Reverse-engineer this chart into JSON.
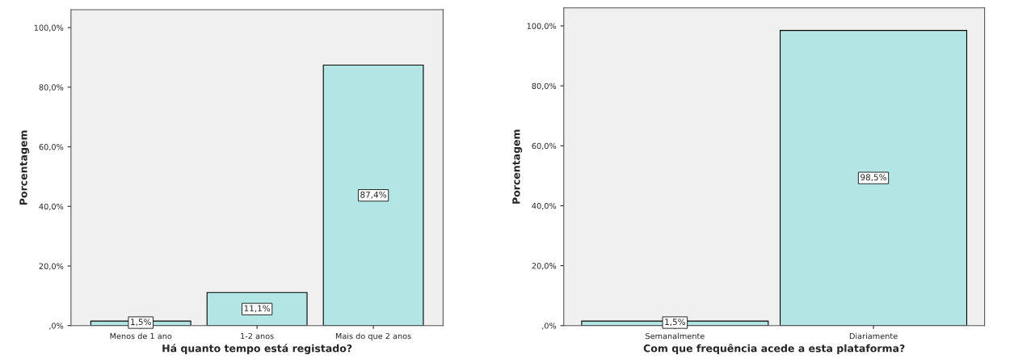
{
  "chart_data": [
    {
      "type": "bar",
      "xlabel": "Há quanto tempo está registado?",
      "ylabel": "Porcentagem",
      "categories": [
        "Menos de 1 ano",
        "1-2 anos",
        "Mais do que 2 anos"
      ],
      "values": [
        1.5,
        11.1,
        87.4
      ],
      "value_labels": [
        "1,5%",
        "11,1%",
        "87,4%"
      ],
      "color": "#b3e5e5",
      "ylim": [
        0,
        106
      ],
      "yticks": [
        {
          "value": 0,
          "label": ",0%"
        },
        {
          "value": 20,
          "label": "20,0%"
        },
        {
          "value": 40,
          "label": "40,0%"
        },
        {
          "value": 60,
          "label": "60,0%"
        },
        {
          "value": 80,
          "label": "80,0%"
        },
        {
          "value": 100,
          "label": "100,0%"
        }
      ],
      "grid": false
    },
    {
      "type": "bar",
      "xlabel": "Com que frequência acede a esta plataforma?",
      "ylabel": "Porcentagem",
      "categories": [
        "Semanalmente",
        "Diariamente"
      ],
      "values": [
        1.5,
        98.5
      ],
      "value_labels": [
        "1,5%",
        "98,5%"
      ],
      "color": "#b3e5e5",
      "ylim": [
        0,
        106
      ],
      "yticks": [
        {
          "value": 0,
          "label": ",0%"
        },
        {
          "value": 20,
          "label": "20,0%"
        },
        {
          "value": 40,
          "label": "40,0%"
        },
        {
          "value": 60,
          "label": "60,0%"
        },
        {
          "value": 80,
          "label": "80,0%"
        },
        {
          "value": 100,
          "label": "100,0%"
        }
      ],
      "grid": false
    }
  ]
}
